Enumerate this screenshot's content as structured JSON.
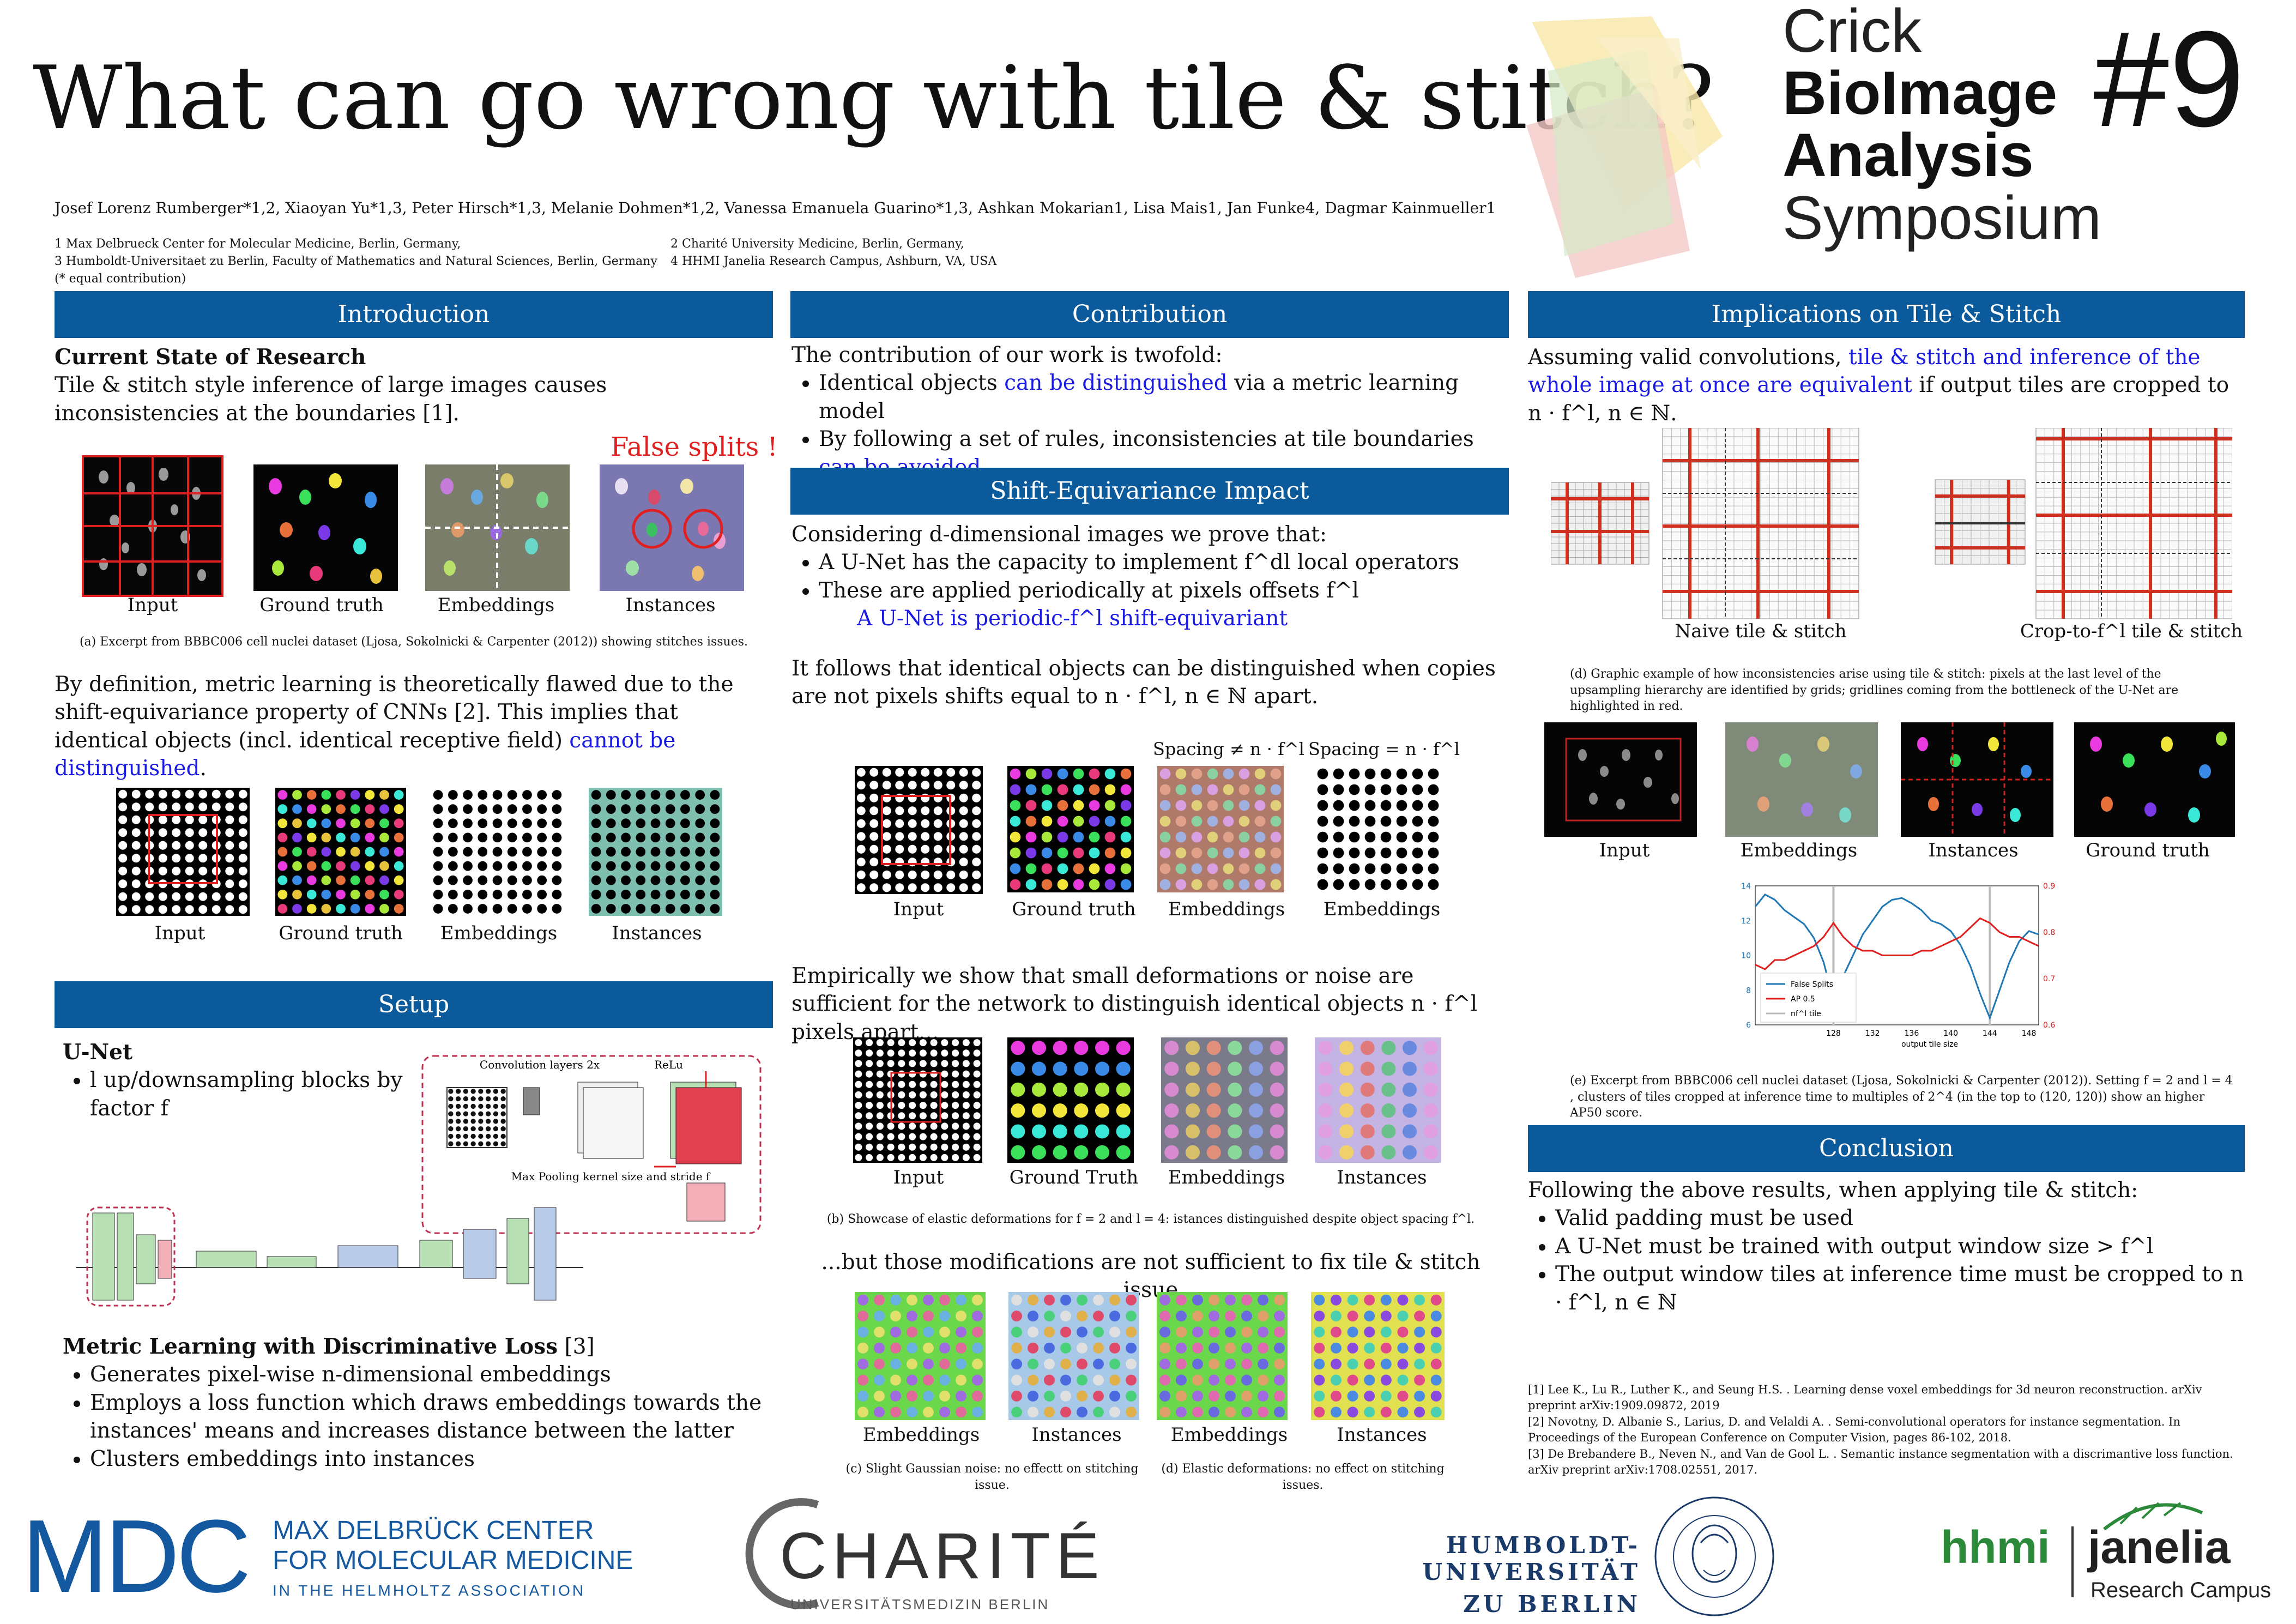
{
  "title": "What can go wrong with tile & stitch?",
  "authors": "Josef Lorenz Rumberger*1,2, Xiaoyan Yu*1,3, Peter Hirsch*1,3, Melanie Dohmen*1,2, Vanessa Emanuela Guarino*1,3, Ashkan Mokarian1, Lisa Mais1, Jan Funke4, Dagmar Kainmueller1",
  "affiliations": {
    "a1": "1 Max Delbrueck Center for Molecular Medicine, Berlin, Germany,",
    "a3": "3 Humboldt-Universitaet zu Berlin, Faculty of Mathematics and Natural Sciences, Berlin, Germany",
    "eq": "(* equal contribution)",
    "a2": "2 Charité University Medicine, Berlin, Germany,",
    "a4": "4 HHMI Janelia Research Campus, Ashburn, VA, USA"
  },
  "symposium": {
    "line1": "Crick",
    "line2": "BioImage",
    "line3": "Analysis",
    "line4": "Symposium",
    "number": "#9"
  },
  "introduction": {
    "heading": "Introduction",
    "subheading": "Current State of Research",
    "text": "Tile & stitch style inference of large images causes inconsistencies at the boundaries [1].",
    "false_splits": "False splits !",
    "labels": [
      "Input",
      "Ground truth",
      "Embeddings",
      "Instances"
    ],
    "caption_a": "(a)  Excerpt from BBBC006 cell nuclei dataset (Ljosa, Sokolnicki & Carpenter (2012)) showing stitches issues.",
    "para2_a": "By definition, metric learning is theoretically flawed due to the shift-equivariance property of CNNs [2]. This implies that identical objects (incl. identical receptive field) ",
    "para2_hl": "cannot be distinguished",
    "para2_end": ".",
    "labels2": [
      "Input",
      "Ground truth",
      "Embeddings",
      "Instances"
    ]
  },
  "setup": {
    "heading": "Setup",
    "unet": "U-Net",
    "unet_bullet": "l up/downsampling blocks by factor f",
    "diagram": {
      "conv": "Convolution layers 2x",
      "relu": "ReLu",
      "pool": "Max Pooling kernel size and stride f"
    },
    "metric_heading": "Metric Learning with Discriminative Loss",
    "metric_ref": " [3]",
    "metric_bullets": [
      "Generates pixel-wise n-dimensional embeddings",
      "Employs a loss function which draws embeddings towards the instances' means and increases distance between the latter",
      "Clusters embeddings into instances"
    ]
  },
  "contribution": {
    "heading": "Contribution",
    "intro": "The contribution of our work is twofold:",
    "b1_a": "Identical objects ",
    "b1_hl": "can be distinguished",
    "b1_b": " via a metric learning model",
    "b2_a": "By following a set of rules, inconsistencies at tile boundaries ",
    "b2_hl": "can be avoided"
  },
  "shift": {
    "heading": "Shift-Equivariance Impact",
    "intro": "Considering d-dimensional images we prove that:",
    "b1": "A U-Net has the capacity to implement f^dl local operators",
    "b2": "These are applied periodically at pixels offsets f^l",
    "b3": "A U-Net is periodic-f^l shift-equivariant",
    "para": "It follows that identical objects can be distinguished when copies are not pixels shifts equal to n · f^l, n ∈ ℕ  apart.",
    "spacing_neq": "Spacing ≠ n · f^l",
    "spacing_eq": "Spacing = n · f^l",
    "labels1": [
      "Input",
      "Ground truth",
      "Embeddings",
      "Embeddings"
    ],
    "empirical": "Empirically we show that small deformations or noise are sufficient for the network to distinguish identical objects  n · f^l pixels apart...",
    "labels2": [
      "Input",
      "Ground Truth",
      "Embeddings",
      "Instances"
    ],
    "caption_b": "(b) Showcase of elastic deformations for  f = 2 and  l = 4: istances distinguished despite object spacing  f^l.",
    "but": "...but those modifications are not sufficient to fix tile & stitch issue",
    "labels3": [
      "Embeddings",
      "Instances",
      "Embeddings",
      "Instances"
    ],
    "caption_c": "(c) Slight Gaussian noise: no effectt on stitching issue.",
    "caption_d": "(d) Elastic deformations: no effect on stitching issues."
  },
  "implications": {
    "heading": "Implications on Tile & Stitch",
    "text_a": "Assuming valid convolutions, ",
    "text_hl": "tile & stitch and inference of the whole image at once are equivalent",
    "text_b": " if output tiles are cropped to  n · f^l, n ∈ ℕ.",
    "grid_labels": [
      "Naive tile & stitch",
      "Crop-to-f^l  tile & stitch"
    ],
    "caption_d": "(d) Graphic example of  how inconsistencies arise using tile & stitch:  pixels at the last level of the upsampling hierarchy are identified by grids; gridlines coming from the bottleneck of the U-Net are highlighted in red.",
    "labels": [
      "Input",
      "Embeddings",
      "Instances",
      "Ground truth"
    ],
    "caption_e": "(e) Excerpt from BBBC006 cell nuclei dataset (Ljosa, Sokolnicki & Carpenter (2012)).  Setting  f = 2 and  l = 4 , clusters of tiles cropped at inference time  to multiples of 2^4 (in the top to  (120, 120)) show an higher AP50 score."
  },
  "conclusion": {
    "heading": "Conclusion",
    "intro": "Following the above results, when applying tile & stitch:",
    "bullets": [
      "Valid padding must be used",
      "A U-Net must be trained with output window size > f^l",
      "The output window tiles at inference time must be cropped to n · f^l, n ∈ ℕ"
    ]
  },
  "references": [
    "[1] Lee K., Lu R., Luther K., and Seung H.S. . Learning dense voxel embeddings for 3d neuron reconstruction. arXiv preprint arXiv:1909.09872, 2019",
    "[2] Novotny, D. Albanie S.,  Larius,  D.  and Velaldi A. . Semi-convolutional operators for instance segmentation. In Proceedings of the European Conference on Computer Vision, pages 86-102, 2018.",
    "[3] De Brebandere B., Neven N., and Van de Gool L. . Semantic instance segmentation with a discrimantive loss function. arXiv preprint arXiv:1708.02551, 2017."
  ],
  "logos": {
    "mdc": "MDC",
    "mdc1": "MAX DELBRÜCK CENTER",
    "mdc2": "FOR MOLECULAR MEDICINE",
    "mdc3": "IN THE HELMHOLTZ ASSOCIATION",
    "charite": "CHARITÉ",
    "charite_sub": "UNIVERSITÄTSMEDIZIN BERLIN",
    "hu1": "HUMBOLDT-UNIVERSITÄT",
    "hu2": "ZU BERLIN",
    "hhmi": "hhmi",
    "janelia": "janelia",
    "janelia_sub": "Research Campus"
  },
  "chart_data": {
    "type": "line",
    "x": [
      120,
      121,
      122,
      123,
      124,
      125,
      126,
      127,
      128,
      129,
      130,
      131,
      132,
      133,
      134,
      135,
      136,
      137,
      138,
      139,
      140,
      141,
      142,
      143,
      144,
      145,
      146,
      147,
      148,
      149
    ],
    "xticks": [
      128,
      132,
      136,
      140,
      144,
      148
    ],
    "xlabel": "output tile size",
    "ylim_left": [
      6,
      14
    ],
    "yticks_left": [
      6,
      8,
      10,
      12,
      14
    ],
    "ylim_right": [
      0.6,
      0.9
    ],
    "yticks_right": [
      0.6,
      0.7,
      0.8,
      0.9
    ],
    "series": [
      {
        "name": "False Splits",
        "axis": "left",
        "color": "#1f77b4",
        "values": [
          12.8,
          13.5,
          13.2,
          12.6,
          12.2,
          11.8,
          11.0,
          9.6,
          7.4,
          8.8,
          10.0,
          11.2,
          12.0,
          12.8,
          13.2,
          13.3,
          13.0,
          12.6,
          12.0,
          11.8,
          11.4,
          10.6,
          9.4,
          7.8,
          6.4,
          8.0,
          9.6,
          10.8,
          11.4,
          11.2
        ]
      },
      {
        "name": "AP 0.5",
        "axis": "right",
        "color": "#e02020",
        "values": [
          0.73,
          0.72,
          0.74,
          0.74,
          0.75,
          0.76,
          0.77,
          0.79,
          0.82,
          0.79,
          0.77,
          0.76,
          0.76,
          0.75,
          0.75,
          0.75,
          0.75,
          0.76,
          0.76,
          0.77,
          0.78,
          0.79,
          0.81,
          0.83,
          0.82,
          0.8,
          0.79,
          0.79,
          0.78,
          0.77
        ]
      }
    ],
    "vlines": [
      128,
      144
    ],
    "vline_label": "nf^l tile"
  }
}
